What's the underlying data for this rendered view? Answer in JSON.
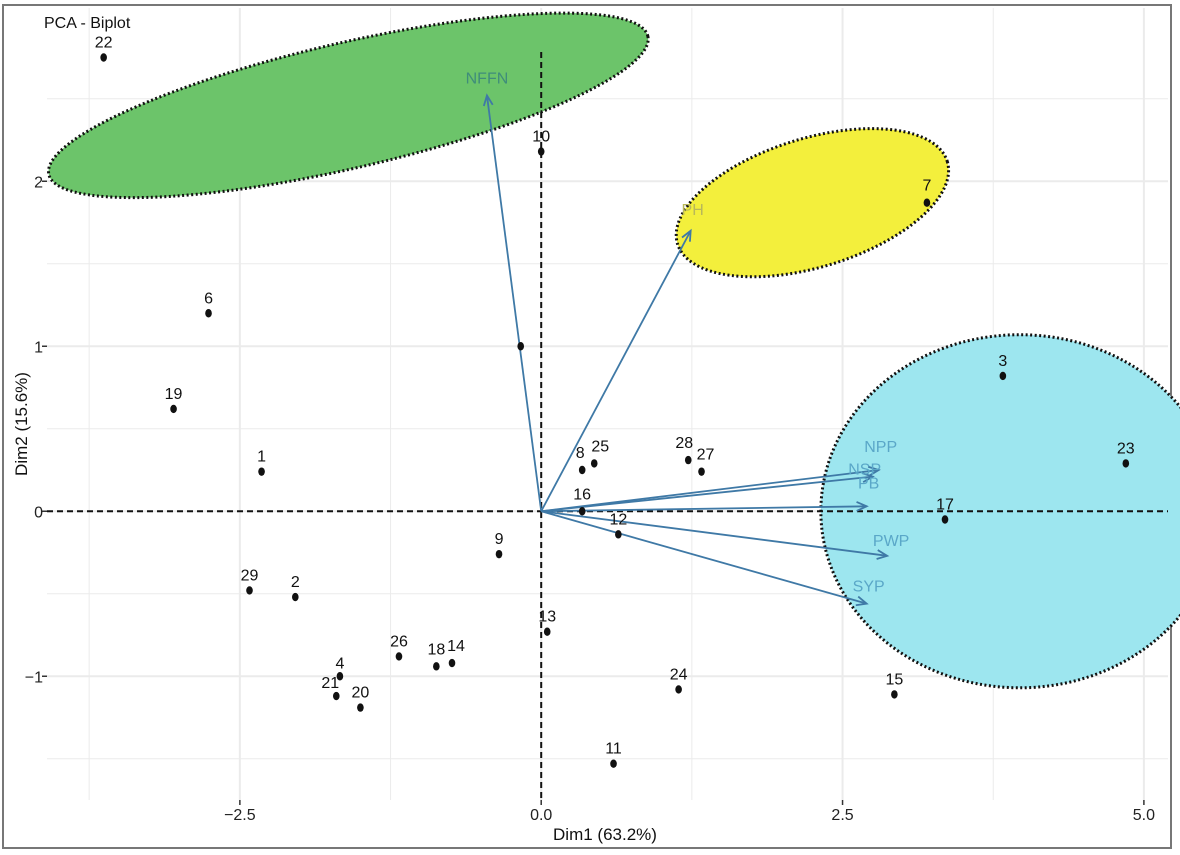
{
  "chart_data": {
    "type": "scatter",
    "title": "PCA - Biplot",
    "xlabel": "Dim1 (63.2%)",
    "ylabel": "Dim2 (15.6%)",
    "xlim": [
      -4.1,
      5.2
    ],
    "ylim": [
      -1.75,
      3.05
    ],
    "x_ticks": [
      {
        "value": -2.5,
        "label": "−2.5"
      },
      {
        "value": 0.0,
        "label": "0.0"
      },
      {
        "value": 2.5,
        "label": "2.5"
      },
      {
        "value": 5.0,
        "label": "5.0"
      }
    ],
    "y_ticks": [
      {
        "value": -1,
        "label": "−1"
      },
      {
        "value": 0,
        "label": "0"
      },
      {
        "value": 1,
        "label": "1"
      },
      {
        "value": 2,
        "label": "2"
      }
    ],
    "grid": true,
    "points": [
      {
        "label": "1",
        "x": -2.32,
        "y": 0.24
      },
      {
        "label": "2",
        "x": -2.04,
        "y": -0.52
      },
      {
        "label": "3",
        "x": 3.83,
        "y": 0.82
      },
      {
        "label": "4",
        "x": -1.67,
        "y": -1.0
      },
      {
        "label": "6",
        "x": -2.76,
        "y": 1.2
      },
      {
        "label": "7",
        "x": 3.2,
        "y": 1.87
      },
      {
        "label": "8",
        "x": 0.34,
        "y": 0.25
      },
      {
        "label": "9",
        "x": -0.35,
        "y": -0.26
      },
      {
        "label": "10",
        "x": 0.0,
        "y": 2.18
      },
      {
        "label": "11",
        "x": 0.6,
        "y": -1.53
      },
      {
        "label": "12",
        "x": 0.64,
        "y": -0.14
      },
      {
        "label": "13",
        "x": 0.05,
        "y": -0.73
      },
      {
        "label": "14",
        "x": -0.74,
        "y": -0.92
      },
      {
        "label": "15",
        "x": 2.93,
        "y": -1.11
      },
      {
        "label": "16",
        "x": 0.34,
        "y": 0.0
      },
      {
        "label": "17",
        "x": 3.35,
        "y": -0.05
      },
      {
        "label": "18",
        "x": -0.87,
        "y": -0.94
      },
      {
        "label": "19",
        "x": -3.05,
        "y": 0.62
      },
      {
        "label": "20",
        "x": -1.5,
        "y": -1.19
      },
      {
        "label": "21",
        "x": -1.7,
        "y": -1.12
      },
      {
        "label": "22",
        "x": -3.63,
        "y": 2.75
      },
      {
        "label": "23",
        "x": 4.85,
        "y": 0.29
      },
      {
        "label": "24",
        "x": 1.14,
        "y": -1.08
      },
      {
        "label": "25",
        "x": 0.44,
        "y": 0.29
      },
      {
        "label": "26",
        "x": -1.18,
        "y": -0.88
      },
      {
        "label": "27",
        "x": 1.33,
        "y": 0.24
      },
      {
        "label": "28",
        "x": 1.22,
        "y": 0.31
      },
      {
        "label": "29",
        "x": -2.42,
        "y": -0.48
      },
      {
        "label": "",
        "x": -0.17,
        "y": 1.0
      }
    ],
    "variables": [
      {
        "name": "NFFN",
        "x": -0.45,
        "y": 2.52
      },
      {
        "name": "PH",
        "x": 1.24,
        "y": 1.7
      },
      {
        "name": "NPP",
        "x": 2.8,
        "y": 0.25
      },
      {
        "name": "NSP",
        "x": 2.75,
        "y": 0.21
      },
      {
        "name": "PB",
        "x": 2.7,
        "y": 0.03
      },
      {
        "name": "PWP",
        "x": 2.87,
        "y": -0.27
      },
      {
        "name": "SYP",
        "x": 2.7,
        "y": -0.56
      }
    ],
    "clusters": [
      {
        "color": "#6cc46a",
        "center": [
          -1.6,
          2.46
        ],
        "semi_axes": [
          2.55,
          0.38
        ],
        "angle_deg": -13
      },
      {
        "color": "#f3ef3c",
        "center": [
          2.25,
          1.87
        ],
        "semi_axes": [
          1.17,
          0.39
        ],
        "angle_deg": -17
      },
      {
        "color": "#9de6ef",
        "center": [
          3.97,
          0.0
        ],
        "semi_axes": [
          1.65,
          1.07
        ],
        "angle_deg": 0
      }
    ],
    "colors": {
      "arrow": "#3f79a6",
      "point": "#111111",
      "grid": "#ebebeb",
      "cluster_border": "#111111"
    }
  }
}
